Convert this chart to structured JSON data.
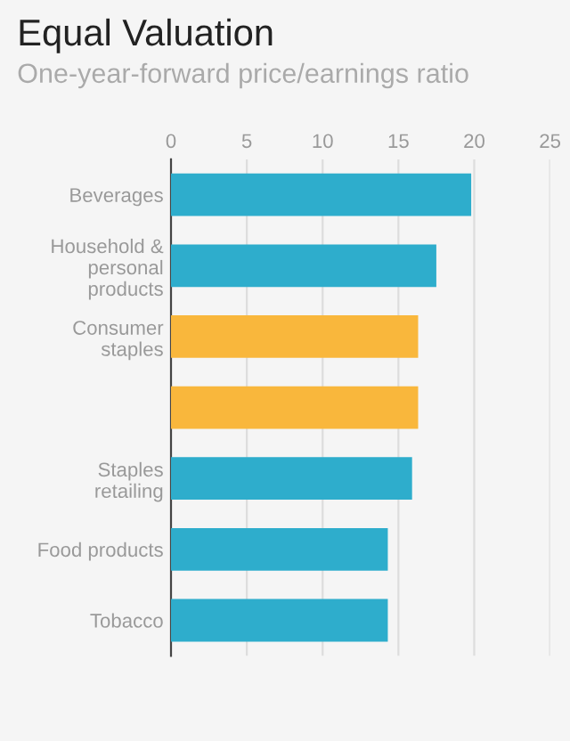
{
  "chart_data": {
    "type": "bar",
    "orientation": "horizontal",
    "title": "Equal Valuation",
    "subtitle": "One-year-forward price/earnings ratio",
    "categories": [
      "Beverages",
      "Household &\npersonal\nproducts",
      "Consumer\nstaples",
      null,
      "Staples\nretailing",
      "Food products",
      "Tobacco"
    ],
    "values": [
      19.8,
      17.5,
      16.3,
      16.3,
      15.9,
      14.3,
      14.3
    ],
    "colors": [
      "#2eadcc",
      "#2eadcc",
      "#f9b73c",
      "#f9b73c",
      "#2eadcc",
      "#2eadcc",
      "#2eadcc"
    ],
    "xlim": [
      0,
      25
    ],
    "xticks": [
      0,
      5,
      10,
      15,
      20,
      25
    ],
    "grid": "x"
  }
}
